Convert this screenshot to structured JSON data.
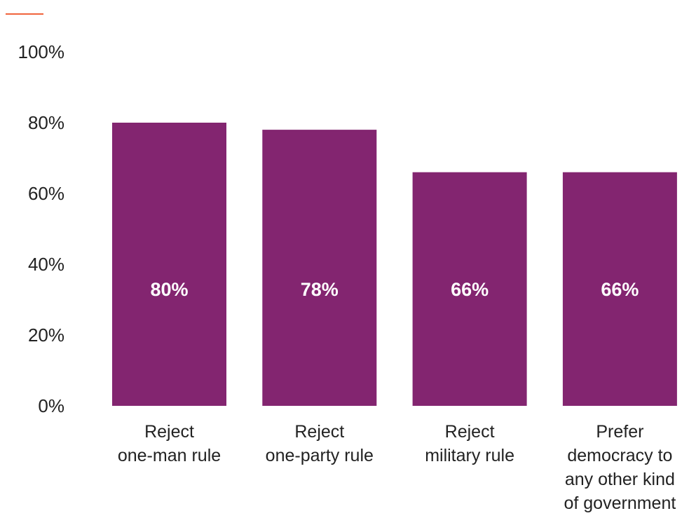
{
  "colors": {
    "bar": "#832570",
    "accent_rule": "#f0643c",
    "value_text": "#ffffff",
    "axis_text": "#222222"
  },
  "chart_data": {
    "type": "bar",
    "categories": [
      [
        "Reject",
        "one-man rule"
      ],
      [
        "Reject",
        "one-party rule"
      ],
      [
        "Reject",
        "military rule"
      ],
      [
        "Prefer",
        "democracy to",
        "any other kind",
        "of government"
      ]
    ],
    "values": [
      80,
      78,
      66,
      66
    ],
    "data_labels": [
      "80%",
      "78%",
      "66%",
      "66%"
    ],
    "y_ticks": [
      0,
      20,
      40,
      60,
      80,
      100
    ],
    "y_tick_labels": [
      "0%",
      "20%",
      "40%",
      "60%",
      "80%",
      "100%"
    ],
    "ylim": [
      0,
      100
    ],
    "grid": false,
    "legend": "none"
  }
}
